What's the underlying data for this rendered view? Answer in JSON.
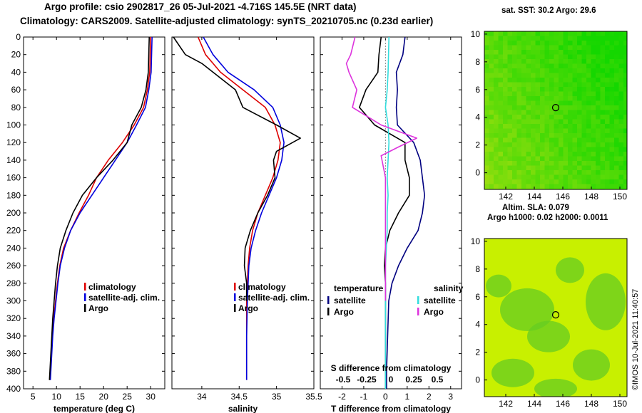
{
  "header": {
    "line1": "Argo profile: csio 2902817_26 05-Jul-2021 -4.716S 145.5E (NRT data)",
    "line2": "Climatology: CARS2009. Satellite-adjusted climatology: synTS_20210705.nc (0.23d earlier)"
  },
  "maps": {
    "sst_title": "sat. SST: 30.2 Argo: 29.6",
    "sla_title": "Altim. SLA: 0.079",
    "sla_subtitle": "Argo h1000: 0.02 h2000: 0.0011",
    "credit": "©IMOS 10-Jul-2021 11:40:57",
    "x_ticks": [
      "142",
      "144",
      "146",
      "148",
      "150"
    ],
    "y_ticks": [
      "0",
      "2",
      "4",
      "6",
      "8",
      "10"
    ],
    "argo_lon": 145.5,
    "argo_lat": 4.7
  },
  "colors": {
    "climatology": "#dd0000",
    "satellite": "#0000dd",
    "argo": "#000000",
    "t_diff": "#000080",
    "s_sat": "#33dddd",
    "s_argo": "#dd33dd"
  },
  "chart_data": [
    {
      "type": "line",
      "title": "",
      "xlabel": "temperature (deg C)",
      "ylabel": "",
      "xlim": [
        3,
        33
      ],
      "ylim": [
        400,
        0
      ],
      "x_ticks": [
        5,
        10,
        15,
        20,
        25,
        30
      ],
      "y_ticks": [
        0,
        20,
        40,
        60,
        80,
        100,
        120,
        140,
        160,
        180,
        200,
        220,
        240,
        260,
        280,
        300,
        320,
        340,
        360,
        380,
        400
      ],
      "legend": [
        {
          "label": "climatology",
          "color": "#dd0000"
        },
        {
          "label": "satellite-adj. clim.",
          "color": "#0000dd"
        },
        {
          "label": "Argo",
          "color": "#000000"
        }
      ],
      "series": [
        {
          "name": "climatology",
          "color": "#dd0000",
          "depth": [
            0,
            40,
            60,
            80,
            100,
            120,
            140,
            160,
            180,
            200,
            220,
            240,
            260,
            280,
            300,
            320,
            340,
            360,
            380,
            390
          ],
          "values": [
            30,
            29.8,
            29.3,
            28.5,
            26.5,
            24,
            21,
            18.5,
            16.8,
            14.8,
            13,
            11.5,
            10.7,
            10.2,
            9.8,
            9.4,
            9.1,
            8.9,
            8.7,
            8.6
          ]
        },
        {
          "name": "satellite-adj. clim.",
          "color": "#0000dd",
          "depth": [
            0,
            40,
            60,
            80,
            100,
            120,
            140,
            160,
            180,
            200,
            220,
            240,
            260,
            280,
            300,
            320,
            340,
            360,
            380,
            390
          ],
          "values": [
            30.3,
            30.1,
            29.6,
            28.9,
            27,
            25,
            22.5,
            20,
            17.5,
            15,
            13,
            11.7,
            10.8,
            10.3,
            9.9,
            9.5,
            9.2,
            9,
            8.8,
            8.7
          ]
        },
        {
          "name": "Argo",
          "color": "#000000",
          "depth": [
            0,
            40,
            60,
            80,
            100,
            120,
            140,
            160,
            180,
            200,
            220,
            240,
            260,
            280,
            300,
            320,
            340,
            360,
            380,
            390
          ],
          "values": [
            29.7,
            29.5,
            29,
            28,
            26,
            25,
            22,
            18.5,
            15.5,
            13.5,
            12,
            10.8,
            10.2,
            9.8,
            9.5,
            9.2,
            9,
            8.8,
            8.6,
            8.5
          ]
        }
      ]
    },
    {
      "type": "line",
      "title": "",
      "xlabel": "salinity",
      "ylabel": "",
      "xlim": [
        33.6,
        35.5
      ],
      "ylim": [
        400,
        0
      ],
      "x_ticks": [
        34,
        34.5,
        35,
        35.5
      ],
      "legend": [
        {
          "label": "climatology",
          "color": "#dd0000"
        },
        {
          "label": "satellite-adj. clim.",
          "color": "#0000dd"
        },
        {
          "label": "Argo",
          "color": "#000000"
        }
      ],
      "series": [
        {
          "name": "climatology",
          "color": "#dd0000",
          "depth": [
            0,
            20,
            40,
            60,
            80,
            100,
            120,
            140,
            160,
            180,
            200,
            220,
            240,
            260,
            280,
            300,
            340,
            390
          ],
          "values": [
            33.95,
            34.05,
            34.25,
            34.55,
            34.85,
            34.98,
            35.05,
            35.02,
            34.95,
            34.85,
            34.75,
            34.68,
            34.64,
            34.62,
            34.61,
            34.6,
            34.6,
            34.6
          ]
        },
        {
          "name": "satellite-adj. clim.",
          "color": "#0000dd",
          "depth": [
            0,
            20,
            40,
            60,
            80,
            100,
            120,
            140,
            160,
            180,
            200,
            220,
            240,
            260,
            280,
            300,
            340,
            390
          ],
          "values": [
            34.02,
            34.15,
            34.35,
            34.7,
            34.95,
            35.05,
            35.1,
            35.07,
            35.0,
            34.9,
            34.8,
            34.72,
            34.66,
            34.63,
            34.62,
            34.61,
            34.6,
            34.6
          ]
        },
        {
          "name": "Argo",
          "color": "#000000",
          "depth": [
            0,
            20,
            30,
            40,
            60,
            80,
            100,
            115,
            130,
            140,
            160,
            180,
            200,
            220,
            240,
            260,
            280,
            300
          ],
          "values": [
            33.62,
            33.78,
            34.0,
            34.15,
            34.45,
            34.55,
            35.0,
            35.32,
            35.0,
            34.96,
            34.98,
            34.88,
            34.75,
            34.65,
            34.58,
            34.57,
            34.6,
            34.6
          ]
        }
      ]
    },
    {
      "type": "line",
      "title": "",
      "xlabel": "T difference from climatology",
      "xlabel_top": "S difference from climatology",
      "ylabel": "",
      "xlim": [
        -3,
        3.5
      ],
      "ylim": [
        400,
        0
      ],
      "x_ticks": [
        -2,
        -1,
        0,
        1,
        2,
        3
      ],
      "x_ticks_top": [
        "-0.5",
        "-0.25",
        "0",
        "0.25",
        "0.5"
      ],
      "legend_left_title": "temperature",
      "legend_right_title": "salinity",
      "legend": [
        {
          "label": "satellite",
          "color": "#000080"
        },
        {
          "label": "Argo",
          "color": "#000000"
        },
        {
          "label": "satellite",
          "color": "#33dddd"
        },
        {
          "label": "Argo",
          "color": "#dd33dd"
        }
      ],
      "series": [
        {
          "name": "T satellite",
          "color": "#000080",
          "depth": [
            0,
            20,
            40,
            60,
            80,
            100,
            120,
            140,
            160,
            180,
            200,
            220,
            240,
            260,
            280,
            300,
            340,
            380,
            400
          ],
          "values": [
            0.9,
            0.8,
            0.5,
            0.55,
            0.5,
            0.55,
            1.3,
            1.6,
            1.7,
            1.8,
            1.7,
            1.5,
            1.0,
            0.6,
            0.3,
            0.15,
            0.1,
            0.05,
            0.05
          ]
        },
        {
          "name": "T Argo",
          "color": "#000000",
          "depth": [
            0,
            20,
            40,
            60,
            80,
            100,
            120,
            140,
            160,
            180,
            200,
            220,
            240,
            260,
            280,
            300,
            340,
            400
          ],
          "values": [
            -0.2,
            -0.3,
            -0.35,
            -0.9,
            -1.2,
            -0.5,
            0.9,
            0.9,
            1.1,
            1.1,
            0.6,
            0.2,
            0.0,
            -0.05,
            0.0,
            0.0,
            0.0,
            0.0
          ]
        },
        {
          "name": "S satellite",
          "color": "#33dddd",
          "depth": [
            0,
            40,
            60,
            80,
            100,
            120,
            140,
            160,
            180,
            200,
            220,
            240,
            260,
            300,
            340,
            400
          ],
          "values": [
            0.04,
            0.03,
            0.02,
            0.0,
            0.03,
            0.04,
            0.03,
            0.02,
            0.03,
            0.02,
            0.02,
            0.01,
            0.0,
            0.0,
            0.0,
            0.0
          ]
        },
        {
          "name": "S Argo",
          "color": "#dd33dd",
          "depth": [
            0,
            20,
            30,
            40,
            60,
            80,
            100,
            115,
            125,
            135,
            160,
            200,
            240,
            280,
            300
          ],
          "values": [
            -0.35,
            -0.4,
            -0.45,
            -0.42,
            -0.33,
            -0.38,
            -0.05,
            0.36,
            0.15,
            -0.05,
            0.0,
            0.0,
            0.0,
            0.0,
            0.0
          ]
        }
      ]
    }
  ]
}
